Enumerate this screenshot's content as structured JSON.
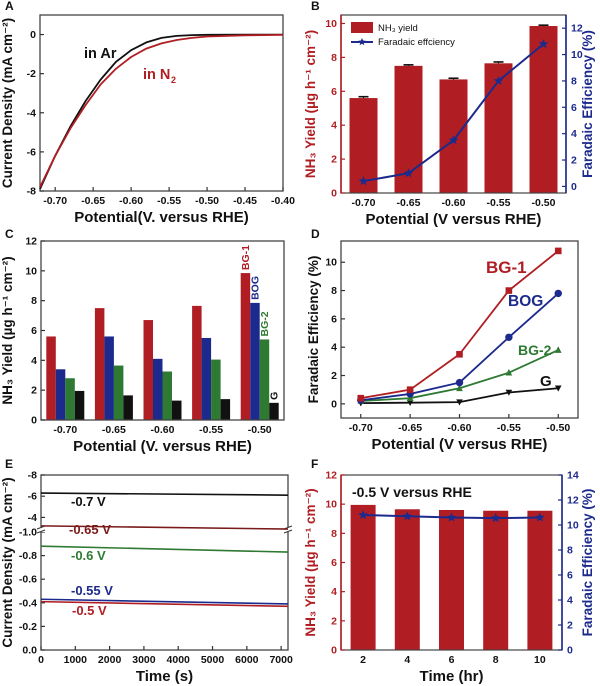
{
  "colors": {
    "red": "#b01e23",
    "darkred": "#7a1a1a",
    "blue": "#1b2a8c",
    "green": "#2e7a32",
    "black": "#111111",
    "axis": "#333333"
  },
  "chart_data": [
    {
      "panel": "A",
      "type": "line",
      "xlabel": "Potential(V. versus RHE)",
      "ylabel": "Current Density (mA cm⁻²)",
      "xlim": [
        -0.72,
        -0.4
      ],
      "ylim": [
        -8,
        1
      ],
      "xticks": [
        -0.7,
        -0.65,
        -0.6,
        -0.55,
        -0.5,
        -0.45,
        -0.4
      ],
      "xtick_labels": [
        "-0.70",
        "-0.65",
        "-0.60",
        "-0.55",
        "-0.50",
        "-0.45",
        "-0.40"
      ],
      "yticks": [
        0,
        -2,
        -4,
        -6,
        -8
      ],
      "ytick_labels": [
        "0",
        "-2",
        "-4",
        "-6",
        "-8"
      ],
      "series": [
        {
          "name": "in Ar",
          "color": "#111111",
          "x": [
            -0.72,
            -0.7,
            -0.68,
            -0.66,
            -0.64,
            -0.62,
            -0.6,
            -0.58,
            -0.56,
            -0.54,
            -0.52,
            -0.5,
            -0.45,
            -0.4
          ],
          "y": [
            -7.9,
            -6.2,
            -4.7,
            -3.4,
            -2.3,
            -1.4,
            -0.8,
            -0.4,
            -0.17,
            -0.07,
            -0.03,
            -0.01,
            0,
            0
          ]
        },
        {
          "name": "in N₂",
          "color": "#b01e23",
          "x": [
            -0.72,
            -0.7,
            -0.68,
            -0.66,
            -0.64,
            -0.62,
            -0.6,
            -0.58,
            -0.56,
            -0.54,
            -0.52,
            -0.5,
            -0.45,
            -0.4
          ],
          "y": [
            -7.8,
            -6.2,
            -4.8,
            -3.6,
            -2.55,
            -1.75,
            -1.15,
            -0.72,
            -0.45,
            -0.28,
            -0.17,
            -0.1,
            -0.04,
            -0.02
          ]
        }
      ],
      "annotations": [
        {
          "text": "in Ar",
          "color": "#111111"
        },
        {
          "text": "in N",
          "sub": "2",
          "color": "#b01e23"
        }
      ]
    },
    {
      "panel": "B",
      "type": "bar",
      "categories": [
        "-0.70",
        "-0.65",
        "-0.60",
        "-0.55",
        "-0.50"
      ],
      "xlabel": "Potential (V versus RHE)",
      "ylabel_left": "NH₃ Yield (µg h⁻¹ cm⁻²)",
      "ylabel_right": "Faradaic Efficiency (%)",
      "ylim_left": [
        0,
        10.5
      ],
      "ylim_right": [
        -0.5,
        13
      ],
      "yticks_left": [
        0,
        2,
        4,
        6,
        8,
        10
      ],
      "yticks_right": [
        0,
        2,
        4,
        6,
        8,
        10,
        12
      ],
      "series": [
        {
          "name": "NH₃ yield",
          "axis": "left",
          "type": "bar",
          "color": "#b01e23",
          "values": [
            5.6,
            7.5,
            6.7,
            7.65,
            9.85
          ],
          "errors": [
            0.08,
            0.06,
            0.07,
            0.08,
            0.05
          ]
        },
        {
          "name": "Faradaic effciency",
          "axis": "right",
          "type": "line",
          "marker": "star",
          "color": "#1b2a8c",
          "values": [
            0.4,
            1.0,
            3.5,
            8.0,
            10.8
          ]
        }
      ],
      "legend": {
        "position": "top-left",
        "items": [
          "NH₃ yield",
          "Faradaic effciency"
        ]
      }
    },
    {
      "panel": "C",
      "type": "bar",
      "categories": [
        "-0.70",
        "-0.65",
        "-0.60",
        "-0.55",
        "-0.50"
      ],
      "xlabel": "Potential (V. versus RHE)",
      "ylabel": "NH₃ Yield (µg h⁻¹ cm⁻²)",
      "ylim": [
        0,
        12
      ],
      "yticks": [
        0,
        2,
        4,
        6,
        8,
        10,
        12
      ],
      "series": [
        {
          "name": "BG-1",
          "color": "#b01e23",
          "values": [
            5.6,
            7.5,
            6.7,
            7.65,
            9.85
          ]
        },
        {
          "name": "BOG",
          "color": "#1b2a8c",
          "values": [
            3.4,
            5.6,
            4.1,
            5.5,
            7.85
          ]
        },
        {
          "name": "BG-2",
          "color": "#2e7a32",
          "values": [
            2.8,
            3.65,
            3.25,
            4.05,
            5.4
          ]
        },
        {
          "name": "G",
          "color": "#111111",
          "values": [
            1.95,
            1.65,
            1.3,
            1.4,
            1.15
          ]
        }
      ]
    },
    {
      "panel": "D",
      "type": "line",
      "x": [
        -0.7,
        -0.65,
        -0.6,
        -0.55,
        -0.5
      ],
      "xtick_labels": [
        "-0.70",
        "-0.65",
        "-0.60",
        "-0.55",
        "-0.50"
      ],
      "xlabel": "Potential (V versus RHE)",
      "ylabel": "Faradaic Efficiency (%)",
      "xlim": [
        -0.72,
        -0.48
      ],
      "ylim": [
        -1,
        11.5
      ],
      "yticks": [
        0,
        2,
        4,
        6,
        8,
        10
      ],
      "series": [
        {
          "name": "BG-1",
          "color": "#b01e23",
          "marker": "square",
          "values": [
            0.4,
            1.0,
            3.5,
            8.0,
            10.8
          ]
        },
        {
          "name": "BOG",
          "color": "#1b2a8c",
          "marker": "circle",
          "values": [
            0.25,
            0.7,
            1.5,
            4.7,
            7.8
          ]
        },
        {
          "name": "BG-2",
          "color": "#2e7a32",
          "marker": "triangle-up",
          "values": [
            0.2,
            0.4,
            1.1,
            2.2,
            3.8
          ]
        },
        {
          "name": "G",
          "color": "#111111",
          "marker": "triangle-down",
          "values": [
            0.05,
            0.08,
            0.12,
            0.8,
            1.1
          ]
        }
      ]
    },
    {
      "panel": "E",
      "type": "line",
      "xlabel": "Time (s)",
      "ylabel": "Current Density (mA cm⁻²)",
      "xlim": [
        0,
        7200
      ],
      "xticks": [
        0,
        1000,
        2000,
        3000,
        4000,
        5000,
        6000,
        7000
      ],
      "xtick_labels": [
        "0",
        "1000",
        "2000",
        "3000",
        "4000",
        "5000",
        "6000",
        "7000"
      ],
      "axis_break": true,
      "ylim_lower": [
        0.0,
        1.0
      ],
      "yticks_lower": [
        0.0,
        -0.2,
        -0.4,
        -0.6,
        -0.8,
        -1.0
      ],
      "ytick_labels_lower": [
        "0.0",
        "-0.2",
        "-0.4",
        "-0.6",
        "-0.8",
        "-1.0"
      ],
      "ylim_upper": [
        -3,
        -8
      ],
      "yticks_upper": [
        -4,
        -6,
        -8
      ],
      "ytick_labels_upper": [
        "-4",
        "-6",
        "-8"
      ],
      "series": [
        {
          "name": "-0.7 V",
          "color": "#111111",
          "segment": "upper",
          "x": [
            0,
            7200
          ],
          "y": [
            -6.3,
            -6.1
          ]
        },
        {
          "name": "-0.65 V",
          "color": "#7a1a1a",
          "segment": "upper",
          "x": [
            0,
            7200
          ],
          "y": [
            -3.2,
            -2.9
          ]
        },
        {
          "name": "-0.6 V",
          "color": "#2e7a32",
          "segment": "lower",
          "x": [
            0,
            7200
          ],
          "y": [
            -0.88,
            -0.83
          ]
        },
        {
          "name": "-0.55 V",
          "color": "#1b2a8c",
          "segment": "lower",
          "x": [
            0,
            7200
          ],
          "y": [
            -0.43,
            -0.39
          ]
        },
        {
          "name": "-0.5 V",
          "color": "#b01e23",
          "segment": "lower",
          "x": [
            0,
            7200
          ],
          "y": [
            -0.41,
            -0.37
          ]
        }
      ]
    },
    {
      "panel": "F",
      "type": "bar",
      "categories": [
        "2",
        "4",
        "6",
        "8",
        "10"
      ],
      "xlabel": "Time (hr)",
      "ylabel_left": "NH₃ Yield (µg h⁻¹ cm⁻²)",
      "ylabel_right": "Faradaic Efficiency (%)",
      "ylim_left": [
        0,
        12
      ],
      "ylim_right": [
        0,
        14
      ],
      "yticks_left": [
        0,
        2,
        4,
        6,
        8,
        10,
        12
      ],
      "yticks_right": [
        0,
        2,
        4,
        6,
        8,
        10,
        12,
        14
      ],
      "annotation": "-0.5 V versus RHE",
      "series": [
        {
          "name": "NH₃ yield",
          "axis": "left",
          "type": "bar",
          "color": "#b01e23",
          "values": [
            9.95,
            9.65,
            9.6,
            9.55,
            9.55
          ]
        },
        {
          "name": "Faradaic efficiency",
          "axis": "right",
          "type": "line",
          "marker": "star",
          "color": "#1b2a8c",
          "values": [
            10.8,
            10.7,
            10.6,
            10.55,
            10.6
          ]
        }
      ]
    }
  ],
  "panel_labels": [
    "A",
    "B",
    "C",
    "D",
    "E",
    "F"
  ]
}
